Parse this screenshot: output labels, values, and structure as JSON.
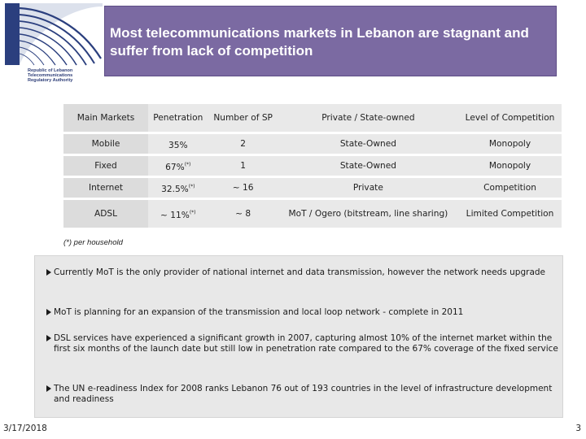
{
  "logo": {
    "text_lines": [
      "Republic of Lebanon",
      "Telecommunications",
      "Regulatory Authority"
    ]
  },
  "header": {
    "title": "Most telecommunications markets in Lebanon are stagnant and suffer from lack of competition"
  },
  "table": {
    "columns": [
      "Main Markets",
      "Penetration",
      "Number of SP",
      "Private / State-owned",
      "Level of Competition"
    ],
    "rows": [
      {
        "market": "Mobile",
        "penetration": "35%",
        "penetration_note": "",
        "sp": "2",
        "ownership": "State-Owned",
        "competition": "Monopoly"
      },
      {
        "market": "Fixed",
        "penetration": "67%",
        "penetration_note": "(*)",
        "sp": "1",
        "ownership": "State-Owned",
        "competition": "Monopoly"
      },
      {
        "market": "Internet",
        "penetration": "32.5%",
        "penetration_note": "(*)",
        "sp": "~ 16",
        "ownership": "Private",
        "competition": "Competition"
      },
      {
        "market": "ADSL",
        "penetration": "~ 11%",
        "penetration_note": "(*)",
        "sp": "~ 8",
        "ownership": "MoT / Ogero (bitstream, line sharing)",
        "competition": "Limited Competition"
      }
    ]
  },
  "footnote": "(*) per household",
  "bullets": [
    "Currently MoT is the only provider of national internet and data transmission, however the network needs upgrade",
    "MoT is planning for an expansion of the transmission and local loop network - complete in 2011",
    "DSL services have experienced a significant growth in 2007, capturing almost 10% of the internet market within the first six months of the launch date but still low in penetration rate compared to the 67% coverage of the fixed service",
    "The UN e-readiness Index for 2008 ranks Lebanon 76 out of 193 countries in the level of infrastructure development and readiness"
  ],
  "footer": {
    "date": "3/17/2018",
    "page": "3"
  }
}
